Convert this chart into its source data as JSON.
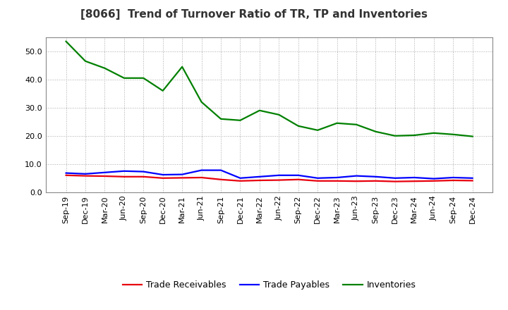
{
  "title": "[8066]  Trend of Turnover Ratio of TR, TP and Inventories",
  "labels": [
    "Sep-19",
    "Dec-19",
    "Mar-20",
    "Jun-20",
    "Sep-20",
    "Dec-20",
    "Mar-21",
    "Jun-21",
    "Sep-21",
    "Dec-21",
    "Mar-22",
    "Jun-22",
    "Sep-22",
    "Dec-22",
    "Mar-23",
    "Jun-23",
    "Sep-23",
    "Dec-23",
    "Mar-24",
    "Jun-24",
    "Sep-24",
    "Dec-24"
  ],
  "trade_receivables": [
    6.0,
    5.8,
    5.7,
    5.5,
    5.5,
    5.0,
    5.1,
    5.2,
    4.5,
    4.0,
    4.2,
    4.3,
    4.5,
    4.0,
    4.0,
    3.9,
    4.0,
    3.8,
    3.9,
    4.0,
    4.2,
    4.1
  ],
  "trade_payables": [
    6.8,
    6.5,
    7.0,
    7.5,
    7.3,
    6.2,
    6.3,
    7.8,
    7.8,
    5.0,
    5.5,
    6.0,
    6.0,
    5.0,
    5.2,
    5.8,
    5.5,
    5.0,
    5.2,
    4.8,
    5.2,
    5.0
  ],
  "inventories": [
    53.5,
    46.5,
    44.0,
    40.5,
    40.5,
    36.0,
    44.5,
    32.0,
    26.0,
    25.5,
    29.0,
    27.5,
    23.5,
    22.0,
    24.5,
    24.0,
    21.5,
    20.0,
    20.2,
    21.0,
    20.5,
    19.8
  ],
  "color_tr": "#e8000d",
  "color_tp": "#0000ff",
  "color_inv": "#008000",
  "ylim": [
    0,
    55
  ],
  "yticks": [
    0.0,
    10.0,
    20.0,
    30.0,
    40.0,
    50.0
  ],
  "background_color": "#ffffff",
  "plot_bg_color": "#ffffff",
  "grid_color": "#aaaaaa",
  "title_fontsize": 11,
  "legend_fontsize": 9,
  "tick_fontsize": 8,
  "line_width": 1.6
}
